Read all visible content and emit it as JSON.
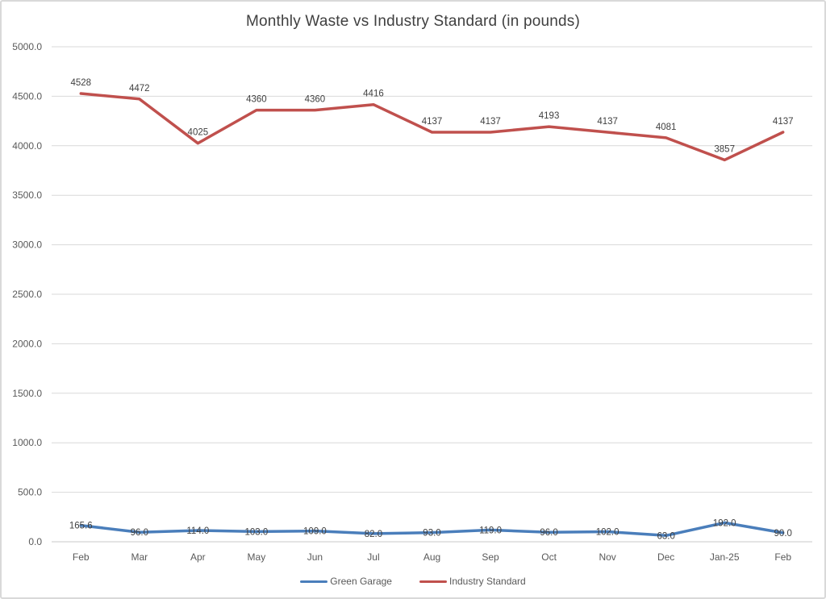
{
  "chart_data": {
    "type": "line",
    "title": "Monthly Waste vs Industry Standard (in pounds)",
    "categories": [
      "Feb",
      "Mar",
      "Apr",
      "May",
      "Jun",
      "Jul",
      "Aug",
      "Sep",
      "Oct",
      "Nov",
      "Dec",
      "Jan-25",
      "Feb"
    ],
    "series": [
      {
        "name": "Green Garage",
        "color": "#4A7EBB",
        "values": [
          165.6,
          96.0,
          114.0,
          103.0,
          109.0,
          82.0,
          93.0,
          119.0,
          96.0,
          102.0,
          63.0,
          192.0,
          90.0
        ],
        "labels": [
          "165.6",
          "96.0",
          "114.0",
          "103.0",
          "109.0",
          "82.0",
          "93.0",
          "119.0",
          "96.0",
          "102.0",
          "63.0",
          "192.0",
          "90.0"
        ],
        "label_placement": "center"
      },
      {
        "name": "Industry Standard",
        "color": "#C0504D",
        "values": [
          4528,
          4472,
          4025,
          4360,
          4360,
          4416,
          4137,
          4137,
          4193,
          4137,
          4081,
          3857,
          4137
        ],
        "labels": [
          "4528",
          "4472",
          "4025",
          "4360",
          "4360",
          "4416",
          "4137",
          "4137",
          "4193",
          "4137",
          "4081",
          "3857",
          "4137"
        ],
        "label_placement": "above"
      }
    ],
    "y_axis": {
      "min": 0,
      "max": 5000,
      "step": 500,
      "tick_labels": [
        "0.0",
        "500.0",
        "1000.0",
        "1500.0",
        "2000.0",
        "2500.0",
        "3000.0",
        "3500.0",
        "4000.0",
        "4500.0",
        "5000.0"
      ]
    },
    "grid": true,
    "legend_position": "bottom",
    "colors": {
      "gridline": "#D9D9D9",
      "zero_line": "#C8C8C8",
      "axis_text": "#595959",
      "label_text": "#404040",
      "title_text": "#404040",
      "background": "#FFFFFF",
      "border": "#D9D9D9"
    }
  }
}
